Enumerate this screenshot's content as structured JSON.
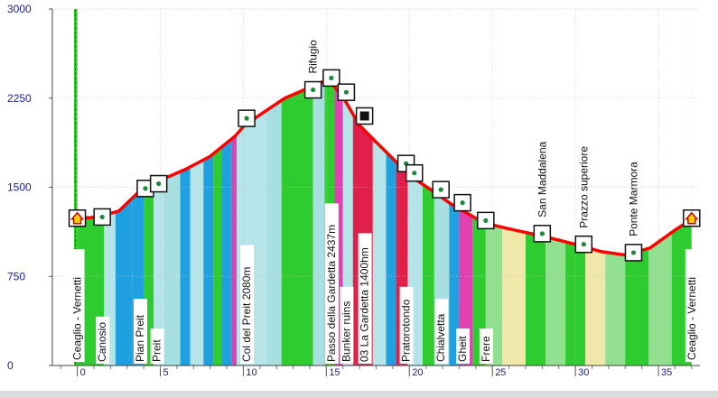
{
  "chart_data": {
    "type": "area",
    "title": "",
    "xlabel": "",
    "ylabel": "",
    "xlim": [
      -1.5,
      37.5
    ],
    "ylim": [
      0,
      3000
    ],
    "yticks": [
      0,
      750,
      1500,
      2250,
      3000
    ],
    "xticks": [
      0,
      5,
      10,
      15,
      20,
      25,
      30,
      35
    ],
    "grid": true,
    "line_color": "#ff0000",
    "cursor_color": "#ff0000",
    "profile": [
      {
        "x": 0.0,
        "y": 1240
      },
      {
        "x": 0.8,
        "y": 1245
      },
      {
        "x": 1.5,
        "y": 1260
      },
      {
        "x": 2.5,
        "y": 1300
      },
      {
        "x": 3.4,
        "y": 1420
      },
      {
        "x": 4.0,
        "y": 1500
      },
      {
        "x": 5.0,
        "y": 1560
      },
      {
        "x": 6.5,
        "y": 1650
      },
      {
        "x": 8.0,
        "y": 1760
      },
      {
        "x": 9.5,
        "y": 1930
      },
      {
        "x": 10.0,
        "y": 2010
      },
      {
        "x": 11.0,
        "y": 2110
      },
      {
        "x": 12.5,
        "y": 2250
      },
      {
        "x": 13.5,
        "y": 2310
      },
      {
        "x": 14.8,
        "y": 2390
      },
      {
        "x": 15.4,
        "y": 2360
      },
      {
        "x": 16.0,
        "y": 2260
      },
      {
        "x": 17.0,
        "y": 2020
      },
      {
        "x": 18.0,
        "y": 1880
      },
      {
        "x": 19.3,
        "y": 1700
      },
      {
        "x": 20.0,
        "y": 1600
      },
      {
        "x": 21.5,
        "y": 1460
      },
      {
        "x": 22.5,
        "y": 1360
      },
      {
        "x": 23.5,
        "y": 1280
      },
      {
        "x": 24.5,
        "y": 1200
      },
      {
        "x": 26.0,
        "y": 1150
      },
      {
        "x": 28.0,
        "y": 1090
      },
      {
        "x": 30.0,
        "y": 1020
      },
      {
        "x": 31.5,
        "y": 960
      },
      {
        "x": 33.0,
        "y": 930
      },
      {
        "x": 34.5,
        "y": 990
      },
      {
        "x": 36.0,
        "y": 1140
      },
      {
        "x": 37.0,
        "y": 1230
      }
    ],
    "bands": [
      {
        "x0": -0.2,
        "x1": 1.6,
        "color": "#2ecc2e"
      },
      {
        "x0": 1.6,
        "x1": 2.3,
        "color": "#b5e5e8"
      },
      {
        "x0": 2.3,
        "x1": 3.3,
        "color": "#1fa0e0"
      },
      {
        "x0": 3.3,
        "x1": 4.0,
        "color": "#1fa0e0"
      },
      {
        "x0": 4.0,
        "x1": 4.6,
        "color": "#2ecc2e"
      },
      {
        "x0": 4.6,
        "x1": 5.2,
        "color": "#b5e5e8"
      },
      {
        "x0": 5.2,
        "x1": 6.2,
        "color": "#a8dfe0"
      },
      {
        "x0": 6.2,
        "x1": 6.8,
        "color": "#1fa0e0"
      },
      {
        "x0": 6.8,
        "x1": 7.6,
        "color": "#b5e5e8"
      },
      {
        "x0": 7.6,
        "x1": 8.2,
        "color": "#1fa0e0"
      },
      {
        "x0": 8.2,
        "x1": 8.7,
        "color": "#2ecc2e"
      },
      {
        "x0": 8.7,
        "x1": 9.3,
        "color": "#1fa0e0"
      },
      {
        "x0": 9.3,
        "x1": 9.6,
        "color": "#e040b0"
      },
      {
        "x0": 9.6,
        "x1": 10.3,
        "color": "#b5e5e8"
      },
      {
        "x0": 10.3,
        "x1": 11.4,
        "color": "#b5e5e8"
      },
      {
        "x0": 11.4,
        "x1": 12.3,
        "color": "#a8dfe0"
      },
      {
        "x0": 12.3,
        "x1": 14.2,
        "color": "#2ecc2e"
      },
      {
        "x0": 14.2,
        "x1": 14.9,
        "color": "#a8dfe0"
      },
      {
        "x0": 14.9,
        "x1": 15.5,
        "color": "#2ecc2e"
      },
      {
        "x0": 15.5,
        "x1": 16.0,
        "color": "#e040b0"
      },
      {
        "x0": 16.0,
        "x1": 16.6,
        "color": "#b5e5e8"
      },
      {
        "x0": 16.6,
        "x1": 17.8,
        "color": "#e0204a"
      },
      {
        "x0": 17.8,
        "x1": 18.6,
        "color": "#b5e5e8"
      },
      {
        "x0": 18.6,
        "x1": 19.2,
        "color": "#1fa0e0"
      },
      {
        "x0": 19.2,
        "x1": 19.9,
        "color": "#e0204a"
      },
      {
        "x0": 19.9,
        "x1": 20.8,
        "color": "#b5e5e8"
      },
      {
        "x0": 20.8,
        "x1": 21.5,
        "color": "#2ecc2e"
      },
      {
        "x0": 21.5,
        "x1": 22.4,
        "color": "#a8dfe0"
      },
      {
        "x0": 22.4,
        "x1": 23.0,
        "color": "#1fa0e0"
      },
      {
        "x0": 23.0,
        "x1": 23.8,
        "color": "#e040b0"
      },
      {
        "x0": 23.8,
        "x1": 24.6,
        "color": "#2ecc2e"
      },
      {
        "x0": 24.6,
        "x1": 25.6,
        "color": "#90e090"
      },
      {
        "x0": 25.6,
        "x1": 27.0,
        "color": "#f0e8a8"
      },
      {
        "x0": 27.0,
        "x1": 28.2,
        "color": "#2ecc2e"
      },
      {
        "x0": 28.2,
        "x1": 29.4,
        "color": "#90e090"
      },
      {
        "x0": 29.4,
        "x1": 30.6,
        "color": "#2ecc2e"
      },
      {
        "x0": 30.6,
        "x1": 31.8,
        "color": "#f0e8a8"
      },
      {
        "x0": 31.8,
        "x1": 33.0,
        "color": "#90e090"
      },
      {
        "x0": 33.0,
        "x1": 34.4,
        "color": "#2ecc2e"
      },
      {
        "x0": 34.4,
        "x1": 35.8,
        "color": "#90e090"
      },
      {
        "x0": 35.8,
        "x1": 37.0,
        "color": "#2ecc2e"
      }
    ],
    "waypoints": [
      {
        "x": 0.0,
        "y": 1240,
        "label": "Ceaglio - Vernetti",
        "icon": "home"
      },
      {
        "x": 1.5,
        "y": 1250,
        "label": "Canosio",
        "icon": "dot"
      },
      {
        "x": 4.1,
        "y": 1490,
        "label": "Pian Preit",
        "icon": "dot"
      },
      {
        "x": 4.9,
        "y": 1530,
        "label": "Preit",
        "icon": "dot"
      },
      {
        "x": 10.2,
        "y": 2080,
        "label": "Col del Preit 2080m",
        "icon": "dot"
      },
      {
        "x": 14.2,
        "y": 2320,
        "label": "Rifugio",
        "icon": "dot"
      },
      {
        "x": 15.3,
        "y": 2420,
        "label": "Passo della Gardetta 2437m",
        "icon": "dot"
      },
      {
        "x": 16.2,
        "y": 2300,
        "label": "Bunker ruins",
        "icon": "dot"
      },
      {
        "x": 17.3,
        "y": 2100,
        "label": "03 La Gardetta 1400hm",
        "icon": "square"
      },
      {
        "x": 19.8,
        "y": 1700,
        "label": "Pratorotondo",
        "icon": "dot"
      },
      {
        "x": 20.3,
        "y": 1620,
        "label": "",
        "icon": "dot"
      },
      {
        "x": 21.9,
        "y": 1480,
        "label": "Chialvetta",
        "icon": "dot"
      },
      {
        "x": 23.2,
        "y": 1370,
        "label": "Gheit",
        "icon": "dot"
      },
      {
        "x": 24.6,
        "y": 1220,
        "label": "Frere",
        "icon": "dot"
      },
      {
        "x": 28.0,
        "y": 1110,
        "label": "San Maddalena",
        "icon": "dot"
      },
      {
        "x": 30.5,
        "y": 1020,
        "label": "Prazzo superiore",
        "icon": "dot"
      },
      {
        "x": 33.5,
        "y": 950,
        "label": "Ponte Marmora",
        "icon": "dot"
      },
      {
        "x": 37.0,
        "y": 1240,
        "label": "Ceaglio - Vernetti",
        "icon": "home"
      }
    ]
  }
}
